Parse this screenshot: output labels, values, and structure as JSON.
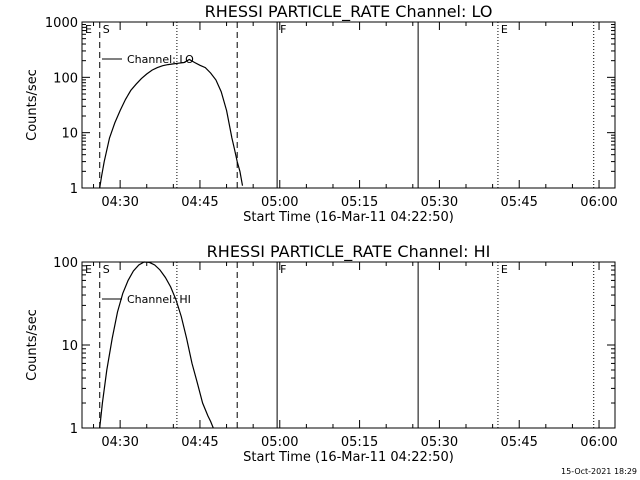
{
  "colors": {
    "background": "#ffffff",
    "foreground": "#000000"
  },
  "chart_data": [
    {
      "type": "line",
      "title": "RHESSI PARTICLE_RATE Channel: LO",
      "xlabel": "Start Time (16-Mar-11 04:22:50)",
      "ylabel": "Counts/sec",
      "yscale": "log",
      "xlim": [
        "04:22:50",
        "06:03:00"
      ],
      "ylim": [
        1,
        1000
      ],
      "xticks": [
        "04:30",
        "04:45",
        "05:00",
        "05:15",
        "05:30",
        "05:45",
        "06:00"
      ],
      "yticks": [
        {
          "value": 1,
          "label": "1"
        },
        {
          "value": 10,
          "label": "10"
        },
        {
          "value": 100,
          "label": "100"
        },
        {
          "value": 1000,
          "label": "1000"
        }
      ],
      "legend": {
        "label": "Channel: LO",
        "position": "top-left"
      },
      "event_markers": [
        {
          "time": "04:22:50",
          "style": "solid",
          "label": "E"
        },
        {
          "time": "04:26:10",
          "style": "dashed",
          "label": "S"
        },
        {
          "time": "04:40:40",
          "style": "dotted",
          "label": ""
        },
        {
          "time": "04:52:00",
          "style": "dashed",
          "label": ""
        },
        {
          "time": "04:59:30",
          "style": "solid",
          "label": "F"
        },
        {
          "time": "05:26:00",
          "style": "solid",
          "label": ""
        },
        {
          "time": "05:41:00",
          "style": "dotted",
          "label": "E"
        },
        {
          "time": "05:59:00",
          "style": "dotted",
          "label": ""
        }
      ],
      "series": [
        {
          "name": "Channel: LO",
          "x": [
            "04:26:10",
            "04:26:30",
            "04:27:00",
            "04:28:00",
            "04:29:00",
            "04:30:00",
            "04:31:00",
            "04:32:00",
            "04:33:00",
            "04:34:00",
            "04:35:00",
            "04:36:00",
            "04:37:00",
            "04:38:00",
            "04:39:00",
            "04:40:00",
            "04:41:00",
            "04:42:00",
            "04:43:00",
            "04:44:00",
            "04:45:00",
            "04:46:00",
            "04:47:00",
            "04:48:00",
            "04:49:00",
            "04:50:00",
            "04:51:00",
            "04:51:30",
            "04:52:00",
            "04:52:30",
            "04:53:00"
          ],
          "y": [
            1.0,
            1.6,
            3.0,
            8.0,
            15,
            25,
            40,
            58,
            75,
            95,
            115,
            135,
            150,
            162,
            170,
            175,
            180,
            185,
            210,
            185,
            165,
            150,
            120,
            90,
            55,
            25,
            8,
            5,
            3,
            2,
            1.1
          ]
        }
      ]
    },
    {
      "type": "line",
      "title": "RHESSI PARTICLE_RATE Channel: HI",
      "xlabel": "Start Time (16-Mar-11 04:22:50)",
      "ylabel": "Counts/sec",
      "yscale": "log",
      "xlim": [
        "04:22:50",
        "06:03:00"
      ],
      "ylim": [
        1,
        100
      ],
      "xticks": [
        "04:30",
        "04:45",
        "05:00",
        "05:15",
        "05:30",
        "05:45",
        "06:00"
      ],
      "yticks": [
        {
          "value": 1,
          "label": "1"
        },
        {
          "value": 10,
          "label": "10"
        },
        {
          "value": 100,
          "label": "100"
        }
      ],
      "legend": {
        "label": "Channel: HI",
        "position": "top-left"
      },
      "event_markers": [
        {
          "time": "04:22:50",
          "style": "solid",
          "label": "E"
        },
        {
          "time": "04:26:10",
          "style": "dashed",
          "label": "S"
        },
        {
          "time": "04:40:40",
          "style": "dotted",
          "label": ""
        },
        {
          "time": "04:52:00",
          "style": "dashed",
          "label": ""
        },
        {
          "time": "04:59:30",
          "style": "solid",
          "label": "F"
        },
        {
          "time": "05:26:00",
          "style": "solid",
          "label": ""
        },
        {
          "time": "05:41:00",
          "style": "dotted",
          "label": "E"
        },
        {
          "time": "05:59:00",
          "style": "dotted",
          "label": ""
        }
      ],
      "series": [
        {
          "name": "Channel: HI",
          "x": [
            "04:26:10",
            "04:26:40",
            "04:27:30",
            "04:28:30",
            "04:29:30",
            "04:30:30",
            "04:31:30",
            "04:32:30",
            "04:33:30",
            "04:34:30",
            "04:35:30",
            "04:36:30",
            "04:37:30",
            "04:38:30",
            "04:39:30",
            "04:40:30",
            "04:41:30",
            "04:42:30",
            "04:43:30",
            "04:44:30",
            "04:45:30",
            "04:46:30",
            "04:47:00",
            "04:47:30"
          ],
          "y": [
            1.0,
            2.0,
            5.0,
            12,
            25,
            42,
            60,
            78,
            92,
            100,
            99,
            92,
            80,
            65,
            50,
            35,
            22,
            12,
            6,
            3.5,
            2,
            1.4,
            1.2,
            1.0
          ]
        }
      ]
    }
  ],
  "footer": {
    "timestamp": "15-Oct-2021 18:29"
  }
}
